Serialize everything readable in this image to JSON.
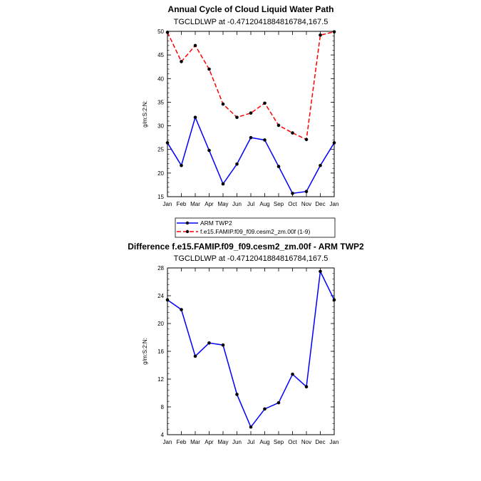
{
  "chart_data": [
    {
      "type": "line",
      "title": "Annual Cycle of Cloud Liquid Water Path",
      "subtitle": "TGCLDLWP at -0.4712041884816784,167.5",
      "ylabel": "g/m:S:2:N:",
      "xlabel": "",
      "categories": [
        "Jan",
        "Feb",
        "Mar",
        "Apr",
        "May",
        "Jun",
        "Jul",
        "Aug",
        "Sep",
        "Oct",
        "Nov",
        "Dec",
        "Jan"
      ],
      "ylim": [
        15,
        50
      ],
      "yticks": [
        15,
        20,
        25,
        30,
        35,
        40,
        45,
        50
      ],
      "series": [
        {
          "name": "ARM TWP2",
          "color": "#0000ff",
          "dash": "",
          "values": [
            26.4,
            21.6,
            31.8,
            24.8,
            17.7,
            21.9,
            27.5,
            27.0,
            21.4,
            15.7,
            16.1,
            21.6,
            26.4
          ]
        },
        {
          "name": "f.e15.FAMIP.f09_f09.cesm2_zm.00f (1-9)",
          "color": "#ff0000",
          "dash": "6,3",
          "values": [
            49.8,
            43.6,
            47.0,
            42.0,
            34.6,
            31.8,
            32.7,
            34.8,
            30.1,
            28.5,
            27.1,
            49.2,
            49.9
          ]
        }
      ]
    },
    {
      "type": "line",
      "title": "Difference f.e15.FAMIP.f09_f09.cesm2_zm.00f - ARM TWP2",
      "subtitle": "TGCLDLWP at -0.4712041884816784,167.5",
      "ylabel": "g/m:S:2:N:",
      "xlabel": "",
      "categories": [
        "Jan",
        "Feb",
        "Mar",
        "Apr",
        "May",
        "Jun",
        "Jul",
        "Aug",
        "Sep",
        "Oct",
        "Nov",
        "Dec",
        "Jan"
      ],
      "ylim": [
        4,
        28
      ],
      "yticks": [
        4,
        8,
        12,
        16,
        20,
        24,
        28
      ],
      "series": [
        {
          "name": "Difference",
          "color": "#0000ff",
          "dash": "",
          "values": [
            23.4,
            22.0,
            15.3,
            17.2,
            16.9,
            9.8,
            5.1,
            7.7,
            8.6,
            12.7,
            10.9,
            27.5,
            23.4
          ]
        }
      ]
    }
  ]
}
